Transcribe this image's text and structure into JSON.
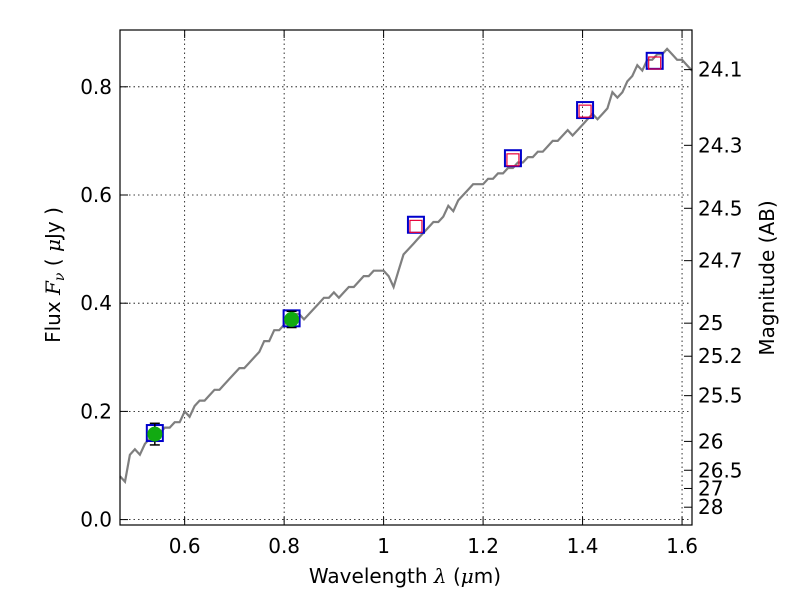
{
  "chart_data": {
    "type": "line",
    "xlabel": "Wavelength  λ (μm)",
    "ylabel_left": "Flux  F_ν  ( μJy )",
    "ylabel_right": "Magnitude (AB)",
    "xlim": [
      0.47,
      1.62
    ],
    "ylim": [
      -0.01,
      0.905
    ],
    "grid": true,
    "x_ticks": [
      0.6,
      0.8,
      1.0,
      1.2,
      1.4,
      1.6
    ],
    "x_tick_labels": [
      "0.6",
      "0.8",
      "1",
      "1.2",
      "1.4",
      "1.6"
    ],
    "y_ticks": [
      0.0,
      0.2,
      0.4,
      0.6,
      0.8
    ],
    "y_tick_labels": [
      "0.0",
      "0.2",
      "0.4",
      "0.6",
      "0.8"
    ],
    "right_ticks": [
      {
        "label": "24.1",
        "mag": 24.1
      },
      {
        "label": "24.3",
        "mag": 24.3
      },
      {
        "label": "24.5",
        "mag": 24.5
      },
      {
        "label": "24.7",
        "mag": 24.7
      },
      {
        "label": "25",
        "mag": 25.0
      },
      {
        "label": "25.2",
        "mag": 25.2
      },
      {
        "label": "25.5",
        "mag": 25.5
      },
      {
        "label": "26",
        "mag": 26.0
      },
      {
        "label": "26.5",
        "mag": 26.5
      },
      {
        "label": "27",
        "mag": 27.0
      },
      {
        "label": "28",
        "mag": 28.0
      }
    ],
    "spectrum": {
      "color": "#7f7f7f",
      "x": [
        0.47,
        0.48,
        0.49,
        0.5,
        0.51,
        0.52,
        0.53,
        0.54,
        0.55,
        0.56,
        0.57,
        0.58,
        0.59,
        0.6,
        0.61,
        0.62,
        0.63,
        0.64,
        0.65,
        0.66,
        0.67,
        0.68,
        0.69,
        0.7,
        0.71,
        0.72,
        0.73,
        0.74,
        0.75,
        0.76,
        0.77,
        0.78,
        0.79,
        0.8,
        0.81,
        0.82,
        0.83,
        0.84,
        0.85,
        0.86,
        0.87,
        0.88,
        0.89,
        0.9,
        0.91,
        0.92,
        0.93,
        0.94,
        0.95,
        0.96,
        0.97,
        0.98,
        0.99,
        1.0,
        1.01,
        1.02,
        1.03,
        1.04,
        1.05,
        1.06,
        1.07,
        1.08,
        1.09,
        1.1,
        1.11,
        1.12,
        1.13,
        1.14,
        1.15,
        1.16,
        1.17,
        1.18,
        1.19,
        1.2,
        1.21,
        1.22,
        1.23,
        1.24,
        1.25,
        1.26,
        1.27,
        1.28,
        1.29,
        1.3,
        1.31,
        1.32,
        1.33,
        1.34,
        1.35,
        1.36,
        1.37,
        1.38,
        1.39,
        1.4,
        1.41,
        1.42,
        1.43,
        1.44,
        1.45,
        1.46,
        1.47,
        1.48,
        1.49,
        1.5,
        1.51,
        1.52,
        1.53,
        1.54,
        1.55,
        1.56,
        1.57,
        1.58,
        1.59,
        1.6,
        1.61,
        1.62
      ],
      "y": [
        0.08,
        0.07,
        0.12,
        0.13,
        0.12,
        0.14,
        0.15,
        0.16,
        0.16,
        0.17,
        0.17,
        0.18,
        0.18,
        0.2,
        0.19,
        0.21,
        0.22,
        0.22,
        0.23,
        0.24,
        0.24,
        0.25,
        0.26,
        0.27,
        0.28,
        0.28,
        0.29,
        0.3,
        0.31,
        0.33,
        0.33,
        0.35,
        0.35,
        0.36,
        0.37,
        0.38,
        0.38,
        0.37,
        0.38,
        0.39,
        0.4,
        0.41,
        0.41,
        0.42,
        0.41,
        0.42,
        0.43,
        0.43,
        0.44,
        0.45,
        0.45,
        0.46,
        0.46,
        0.46,
        0.45,
        0.43,
        0.46,
        0.49,
        0.5,
        0.51,
        0.52,
        0.53,
        0.54,
        0.55,
        0.55,
        0.56,
        0.58,
        0.57,
        0.59,
        0.6,
        0.61,
        0.62,
        0.62,
        0.62,
        0.63,
        0.63,
        0.64,
        0.64,
        0.65,
        0.65,
        0.66,
        0.66,
        0.67,
        0.67,
        0.68,
        0.68,
        0.69,
        0.7,
        0.7,
        0.71,
        0.72,
        0.71,
        0.72,
        0.73,
        0.74,
        0.75,
        0.74,
        0.75,
        0.76,
        0.79,
        0.78,
        0.79,
        0.81,
        0.82,
        0.84,
        0.83,
        0.85,
        0.85,
        0.86,
        0.86,
        0.87,
        0.86,
        0.85,
        0.85,
        0.84,
        0.83
      ]
    },
    "model_points": {
      "marker": "square",
      "edge_color": "#0000cc",
      "x": [
        0.54,
        0.815,
        1.065,
        1.26,
        1.405,
        1.545
      ],
      "y": [
        0.16,
        0.372,
        0.545,
        0.668,
        0.757,
        0.848
      ]
    },
    "model_points_inner": {
      "marker": "square",
      "edge_color": "#e8003a",
      "x": [
        1.065,
        1.26,
        1.405,
        1.545
      ],
      "y": [
        0.542,
        0.665,
        0.755,
        0.844
      ]
    },
    "observed_points": {
      "marker": "circle",
      "color": "#11aa11",
      "x": [
        0.54,
        0.815
      ],
      "y": [
        0.158,
        0.37
      ],
      "yerr": [
        0.02,
        0.015
      ]
    }
  }
}
